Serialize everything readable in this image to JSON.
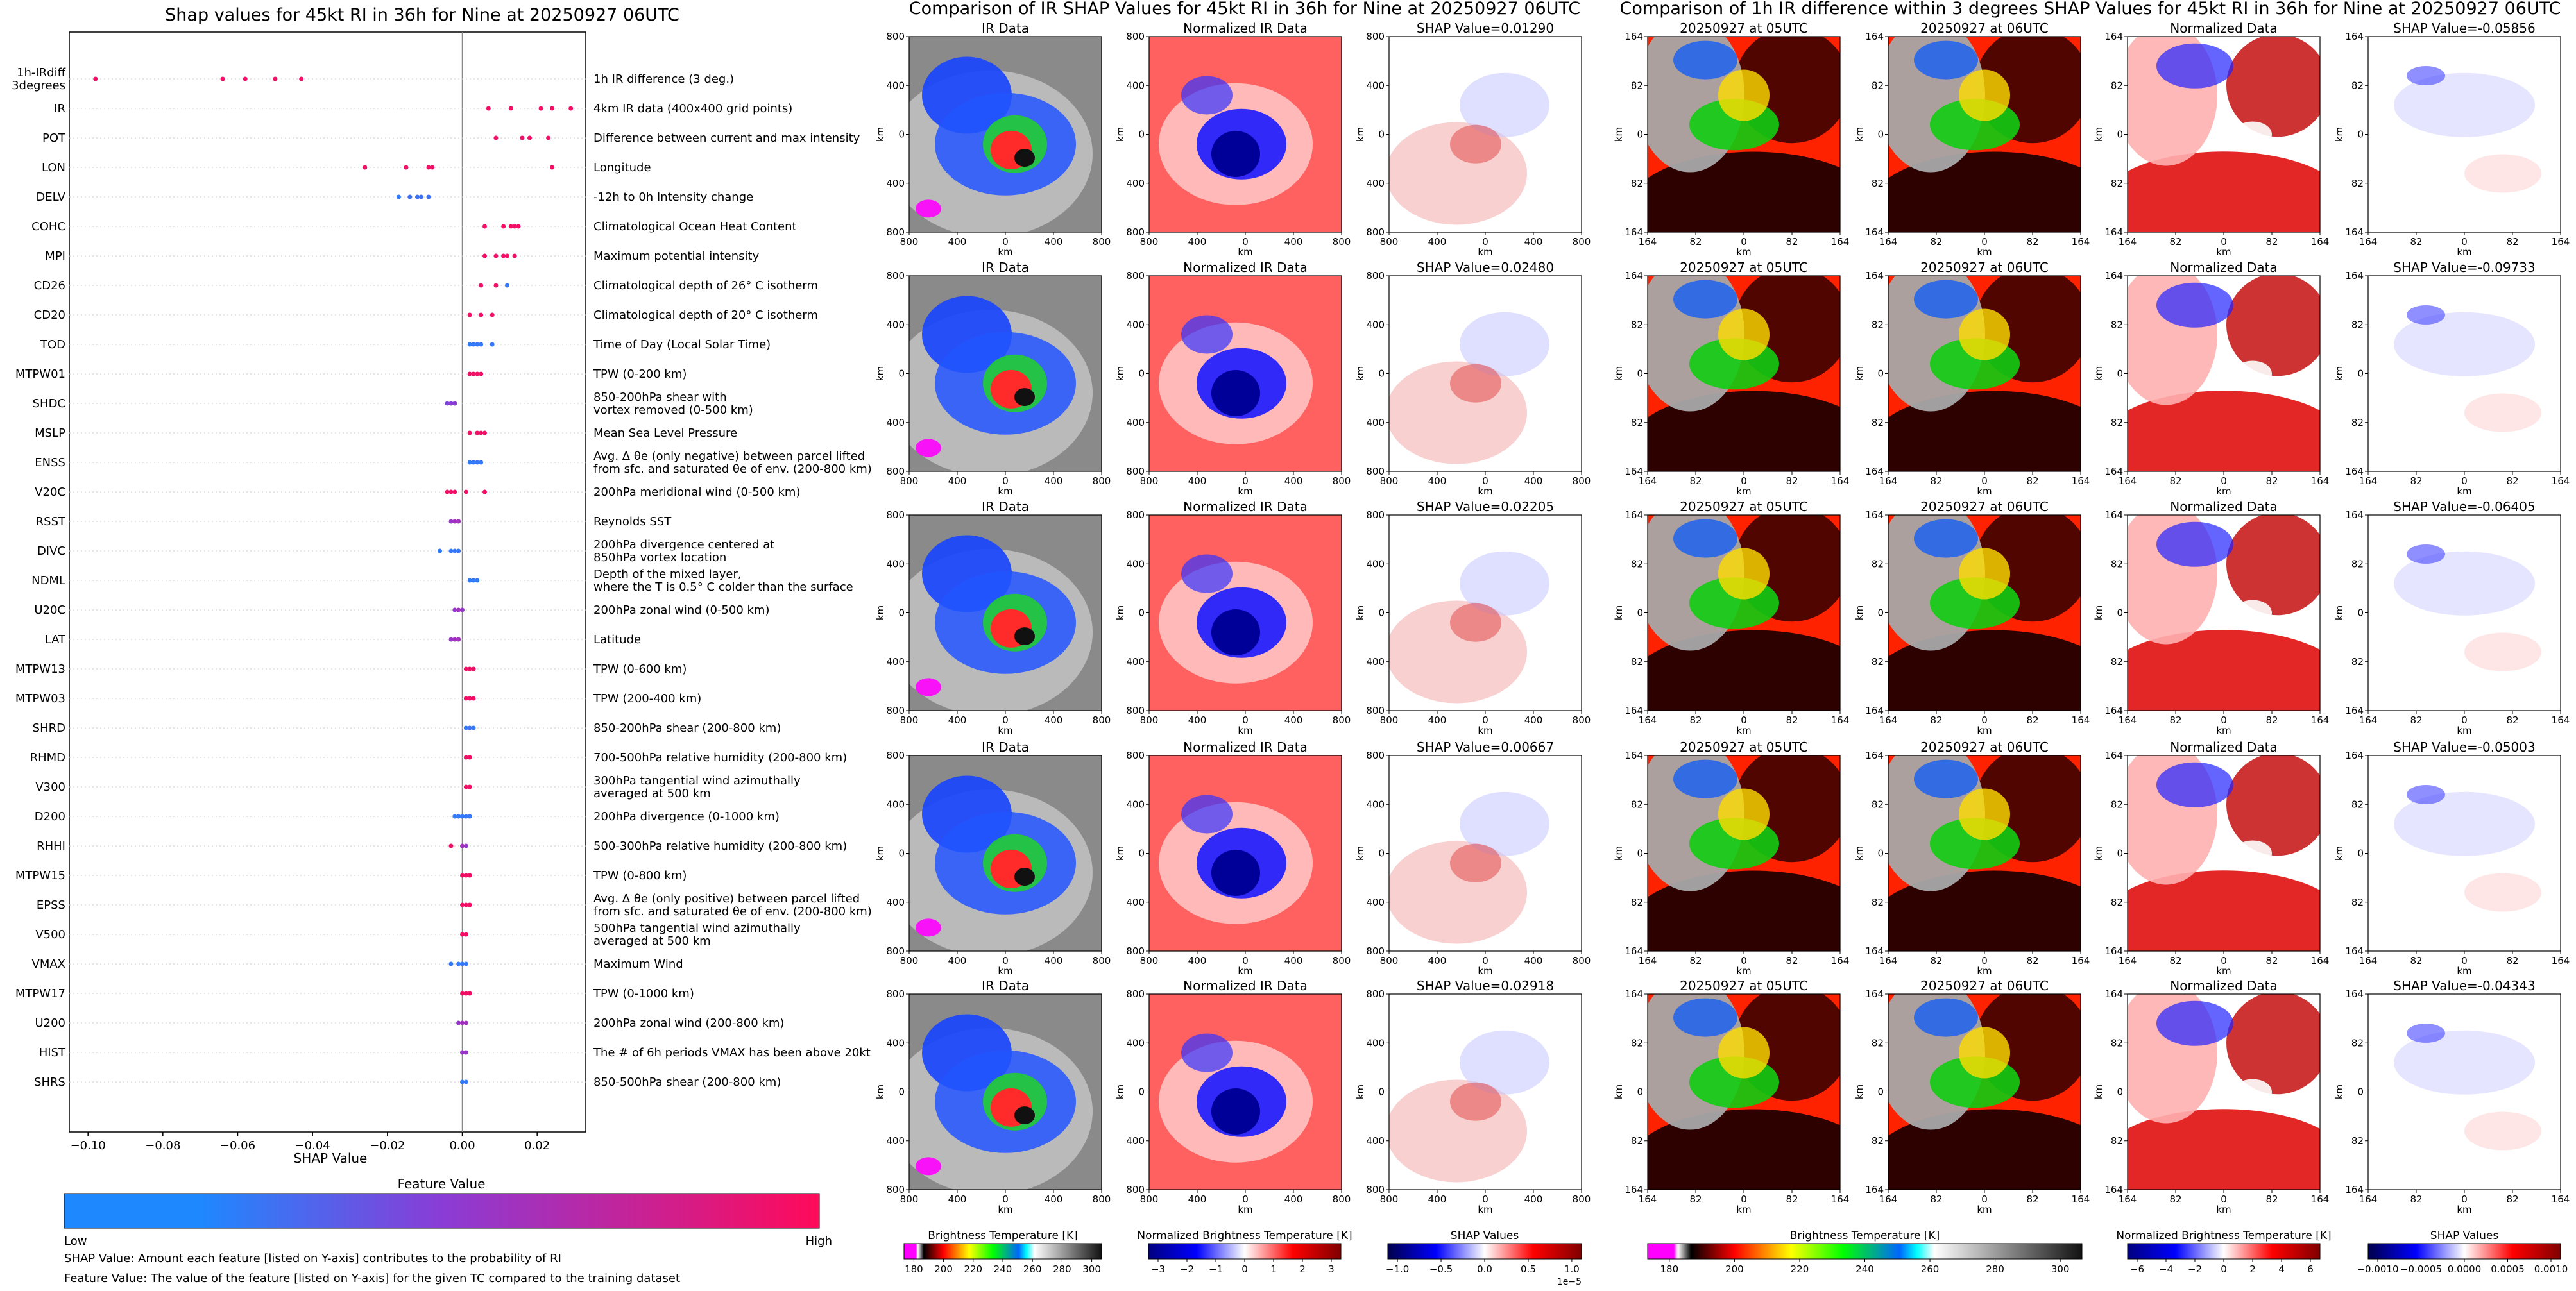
{
  "left_panel": {
    "title": "Shap values for 45kt RI in 36h for Nine at 20250927 06UTC",
    "xlabel": "SHAP Value",
    "x_ticks": [
      "−0.10",
      "−0.08",
      "−0.06",
      "−0.04",
      "−0.02",
      "0.00",
      "0.02"
    ],
    "xlim": [
      -0.105,
      0.033
    ],
    "colorbar": {
      "title": "Feature Value",
      "low": "Low",
      "high": "High"
    },
    "footnote_1": "SHAP Value: Amount each feature [listed on Y-axis] contributes to the probability of RI",
    "footnote_2": "Feature Value: The value of the feature [listed on Y-axis] for the given TC compared to the training dataset",
    "colors": {
      "low": "#1e88ff",
      "mid": "#8a3cd6",
      "high": "#ff0a5a"
    }
  },
  "chart_data": {
    "type": "scatter",
    "title": "Shap values for 45kt RI in 36h for Nine at 20250927 06UTC",
    "xlabel": "SHAP Value",
    "xlim": [
      -0.105,
      0.033
    ],
    "features": [
      {
        "name": "1h-IRdiff\n3degrees",
        "desc": "1h IR difference (3 deg.)",
        "points": [
          [
            -0.098,
            0.95
          ],
          [
            -0.064,
            0.95
          ],
          [
            -0.058,
            0.95
          ],
          [
            -0.05,
            0.95
          ],
          [
            -0.043,
            0.95
          ]
        ]
      },
      {
        "name": "IR",
        "desc": "4km IR data (400x400 grid points)",
        "points": [
          [
            0.007,
            0.95
          ],
          [
            0.013,
            0.95
          ],
          [
            0.021,
            0.95
          ],
          [
            0.024,
            0.95
          ],
          [
            0.029,
            0.95
          ]
        ]
      },
      {
        "name": "POT",
        "desc": "Difference between current and max intensity",
        "points": [
          [
            0.009,
            0.95
          ],
          [
            0.016,
            0.95
          ],
          [
            0.018,
            0.95
          ],
          [
            0.023,
            0.95
          ]
        ]
      },
      {
        "name": "LON",
        "desc": "Longitude",
        "points": [
          [
            -0.026,
            0.95
          ],
          [
            -0.015,
            0.95
          ],
          [
            -0.009,
            0.95
          ],
          [
            -0.008,
            0.95
          ],
          [
            0.024,
            0.95
          ]
        ]
      },
      {
        "name": "DELV",
        "desc": "-12h to 0h Intensity change",
        "points": [
          [
            -0.017,
            0.1
          ],
          [
            -0.014,
            0.15
          ],
          [
            -0.012,
            0.15
          ],
          [
            -0.011,
            0.15
          ],
          [
            -0.009,
            0.15
          ]
        ]
      },
      {
        "name": "COHC",
        "desc": "Climatological Ocean Heat Content",
        "points": [
          [
            0.006,
            0.95
          ],
          [
            0.011,
            0.95
          ],
          [
            0.013,
            0.95
          ],
          [
            0.014,
            0.95
          ],
          [
            0.015,
            0.95
          ]
        ]
      },
      {
        "name": "MPI",
        "desc": "Maximum potential intensity",
        "points": [
          [
            0.006,
            0.95
          ],
          [
            0.009,
            0.95
          ],
          [
            0.011,
            0.95
          ],
          [
            0.012,
            0.95
          ],
          [
            0.014,
            0.95
          ]
        ]
      },
      {
        "name": "CD26",
        "desc": "Climatological depth of 26° C isotherm",
        "points": [
          [
            0.005,
            0.95
          ],
          [
            0.009,
            0.95
          ],
          [
            0.012,
            0.1
          ]
        ]
      },
      {
        "name": "CD20",
        "desc": "Climatological depth of 20° C isotherm",
        "points": [
          [
            0.002,
            0.95
          ],
          [
            0.005,
            0.95
          ],
          [
            0.008,
            0.95
          ]
        ]
      },
      {
        "name": "TOD",
        "desc": "Time of Day (Local Solar Time)",
        "points": [
          [
            0.002,
            0.1
          ],
          [
            0.003,
            0.1
          ],
          [
            0.004,
            0.1
          ],
          [
            0.005,
            0.1
          ],
          [
            0.008,
            0.1
          ]
        ]
      },
      {
        "name": "MTPW01",
        "desc": "TPW (0-200 km)",
        "points": [
          [
            0.002,
            0.95
          ],
          [
            0.003,
            0.95
          ],
          [
            0.004,
            0.95
          ],
          [
            0.005,
            0.95
          ]
        ]
      },
      {
        "name": "SHDC",
        "desc": "850-200hPa shear with\nvortex removed (0-500 km)",
        "points": [
          [
            -0.004,
            0.45
          ],
          [
            -0.003,
            0.5
          ],
          [
            -0.002,
            0.5
          ]
        ]
      },
      {
        "name": "MSLP",
        "desc": "Mean Sea Level Pressure",
        "points": [
          [
            0.002,
            0.95
          ],
          [
            0.004,
            0.95
          ],
          [
            0.005,
            0.95
          ],
          [
            0.006,
            0.95
          ]
        ]
      },
      {
        "name": "ENSS",
        "desc": "Avg. Δ θe (only negative) between parcel lifted\nfrom sfc. and saturated θe of env. (200-800 km)",
        "points": [
          [
            0.002,
            0.1
          ],
          [
            0.003,
            0.1
          ],
          [
            0.004,
            0.1
          ],
          [
            0.005,
            0.1
          ]
        ]
      },
      {
        "name": "V20C",
        "desc": "200hPa meridional wind (0-500 km)",
        "points": [
          [
            -0.004,
            0.95
          ],
          [
            -0.003,
            0.95
          ],
          [
            -0.002,
            0.95
          ],
          [
            0.001,
            0.95
          ],
          [
            0.006,
            0.95
          ]
        ]
      },
      {
        "name": "RSST",
        "desc": "Reynolds SST",
        "points": [
          [
            -0.003,
            0.55
          ],
          [
            -0.002,
            0.6
          ],
          [
            -0.001,
            0.6
          ]
        ]
      },
      {
        "name": "DIVC",
        "desc": "200hPa divergence centered at\n850hPa vortex location",
        "points": [
          [
            -0.006,
            0.1
          ],
          [
            -0.003,
            0.1
          ],
          [
            -0.002,
            0.1
          ],
          [
            -0.001,
            0.1
          ]
        ]
      },
      {
        "name": "NDML",
        "desc": "Depth of the mixed layer,\nwhere the T is 0.5° C colder than the surface",
        "points": [
          [
            0.002,
            0.1
          ],
          [
            0.003,
            0.1
          ],
          [
            0.004,
            0.1
          ]
        ]
      },
      {
        "name": "U20C",
        "desc": "200hPa zonal wind (0-500 km)",
        "points": [
          [
            -0.002,
            0.55
          ],
          [
            -0.001,
            0.6
          ],
          [
            0.0,
            0.55
          ]
        ]
      },
      {
        "name": "LAT",
        "desc": "Latitude",
        "points": [
          [
            -0.003,
            0.55
          ],
          [
            -0.002,
            0.6
          ],
          [
            -0.001,
            0.6
          ]
        ]
      },
      {
        "name": "MTPW13",
        "desc": "TPW (0-600 km)",
        "points": [
          [
            0.001,
            0.95
          ],
          [
            0.002,
            0.95
          ],
          [
            0.003,
            0.95
          ]
        ]
      },
      {
        "name": "MTPW03",
        "desc": "TPW (200-400 km)",
        "points": [
          [
            0.001,
            0.95
          ],
          [
            0.002,
            0.95
          ],
          [
            0.003,
            0.95
          ]
        ]
      },
      {
        "name": "SHRD",
        "desc": "850-200hPa shear (200-800 km)",
        "points": [
          [
            0.001,
            0.1
          ],
          [
            0.002,
            0.15
          ],
          [
            0.003,
            0.1
          ]
        ]
      },
      {
        "name": "RHMD",
        "desc": "700-500hPa relative humidity (200-800 km)",
        "points": [
          [
            0.001,
            0.95
          ],
          [
            0.002,
            0.95
          ]
        ]
      },
      {
        "name": "V300",
        "desc": "300hPa tangential wind azimuthally\naveraged at 500 km",
        "points": [
          [
            0.001,
            0.95
          ],
          [
            0.002,
            0.95
          ]
        ]
      },
      {
        "name": "D200",
        "desc": "200hPa divergence (0-1000 km)",
        "points": [
          [
            -0.002,
            0.1
          ],
          [
            -0.001,
            0.1
          ],
          [
            0.0,
            0.1
          ],
          [
            0.001,
            0.1
          ],
          [
            0.002,
            0.1
          ]
        ]
      },
      {
        "name": "RHHI",
        "desc": "500-300hPa relative humidity (200-800 km)",
        "points": [
          [
            -0.003,
            0.95
          ],
          [
            0.0,
            0.6
          ],
          [
            0.001,
            0.55
          ]
        ]
      },
      {
        "name": "MTPW15",
        "desc": "TPW (0-800 km)",
        "points": [
          [
            0.0,
            0.95
          ],
          [
            0.001,
            0.95
          ],
          [
            0.002,
            0.95
          ]
        ]
      },
      {
        "name": "EPSS",
        "desc": "Avg. Δ θe (only positive) between parcel lifted\nfrom sfc. and saturated θe of env. (200-800 km)",
        "points": [
          [
            0.0,
            0.95
          ],
          [
            0.001,
            0.95
          ],
          [
            0.002,
            0.95
          ]
        ]
      },
      {
        "name": "V500",
        "desc": "500hPa tangential wind azimuthally\naveraged at 500 km",
        "points": [
          [
            0.0,
            0.95
          ],
          [
            0.001,
            0.95
          ]
        ]
      },
      {
        "name": "VMAX",
        "desc": "Maximum Wind",
        "points": [
          [
            -0.003,
            0.1
          ],
          [
            -0.001,
            0.1
          ],
          [
            0.0,
            0.1
          ],
          [
            0.001,
            0.1
          ]
        ]
      },
      {
        "name": "MTPW17",
        "desc": "TPW (0-1000 km)",
        "points": [
          [
            0.0,
            0.95
          ],
          [
            0.001,
            0.95
          ],
          [
            0.002,
            0.95
          ]
        ]
      },
      {
        "name": "U200",
        "desc": "200hPa zonal wind (200-800 km)",
        "points": [
          [
            -0.001,
            0.55
          ],
          [
            0.0,
            0.6
          ],
          [
            0.001,
            0.6
          ]
        ]
      },
      {
        "name": "HIST",
        "desc": "The # of 6h periods VMAX has been above 20kt",
        "points": [
          [
            0.0,
            0.55
          ],
          [
            0.001,
            0.55
          ]
        ]
      },
      {
        "name": "SHRS",
        "desc": "850-500hPa shear (200-800 km)",
        "points": [
          [
            0.0,
            0.1
          ],
          [
            0.001,
            0.1
          ]
        ]
      }
    ]
  },
  "ir_section": {
    "title": "Comparison of IR SHAP Values for 45kt RI in 36h for Nine at 20250927 06UTC",
    "col_titles": [
      "IR Data",
      "Normalized IR Data"
    ],
    "shap_titles": [
      "SHAP Value=0.01290",
      "SHAP Value=0.02480",
      "SHAP Value=0.02205",
      "SHAP Value=0.00667",
      "SHAP Value=0.02918"
    ],
    "axis_label": "km",
    "y_ticks": [
      "800",
      "400",
      "0",
      "400",
      "800"
    ],
    "x_ticks": [
      "800",
      "400",
      "0",
      "400",
      "800"
    ],
    "colorbars": [
      {
        "label": "Brightness Temperature [K]",
        "ticks": [
          "180",
          "200",
          "220",
          "240",
          "260",
          "280",
          "300"
        ]
      },
      {
        "label": "Normalized Brightness Temperature [K]",
        "ticks": [
          "−3",
          "−2",
          "−1",
          "0",
          "1",
          "2",
          "3"
        ]
      },
      {
        "label": "SHAP Values",
        "ticks": [
          "−1.0",
          "−0.5",
          "0.0",
          "0.5",
          "1.0"
        ],
        "exponent": "1e−5"
      }
    ]
  },
  "diff_section": {
    "title": "Comparison of 1h IR difference within 3 degrees SHAP Values for 45kt RI in 36h for Nine at 20250927 06UTC",
    "col_titles": [
      "20250927 at 05UTC",
      "20250927 at 06UTC",
      "Normalized Data"
    ],
    "shap_titles": [
      "SHAP Value=-0.05856",
      "SHAP Value=-0.09733",
      "SHAP Value=-0.06405",
      "SHAP Value=-0.05003",
      "SHAP Value=-0.04343"
    ],
    "axis_label": "km",
    "y_ticks": [
      "164",
      "82",
      "0",
      "82",
      "164"
    ],
    "x_ticks": [
      "164",
      "82",
      "0",
      "82",
      "164"
    ],
    "colorbars": [
      {
        "label": "Brightness Temperature [K]",
        "ticks": [
          "180",
          "200",
          "220",
          "240",
          "260",
          "280",
          "300"
        ]
      },
      {
        "label": "Normalized Brightness Temperature [K]",
        "ticks": [
          "−6",
          "−4",
          "−2",
          "0",
          "2",
          "4",
          "6"
        ]
      },
      {
        "label": "SHAP Values",
        "ticks": [
          "−0.0010",
          "−0.0005",
          "0.0000",
          "0.0005",
          "0.0010"
        ]
      }
    ]
  }
}
